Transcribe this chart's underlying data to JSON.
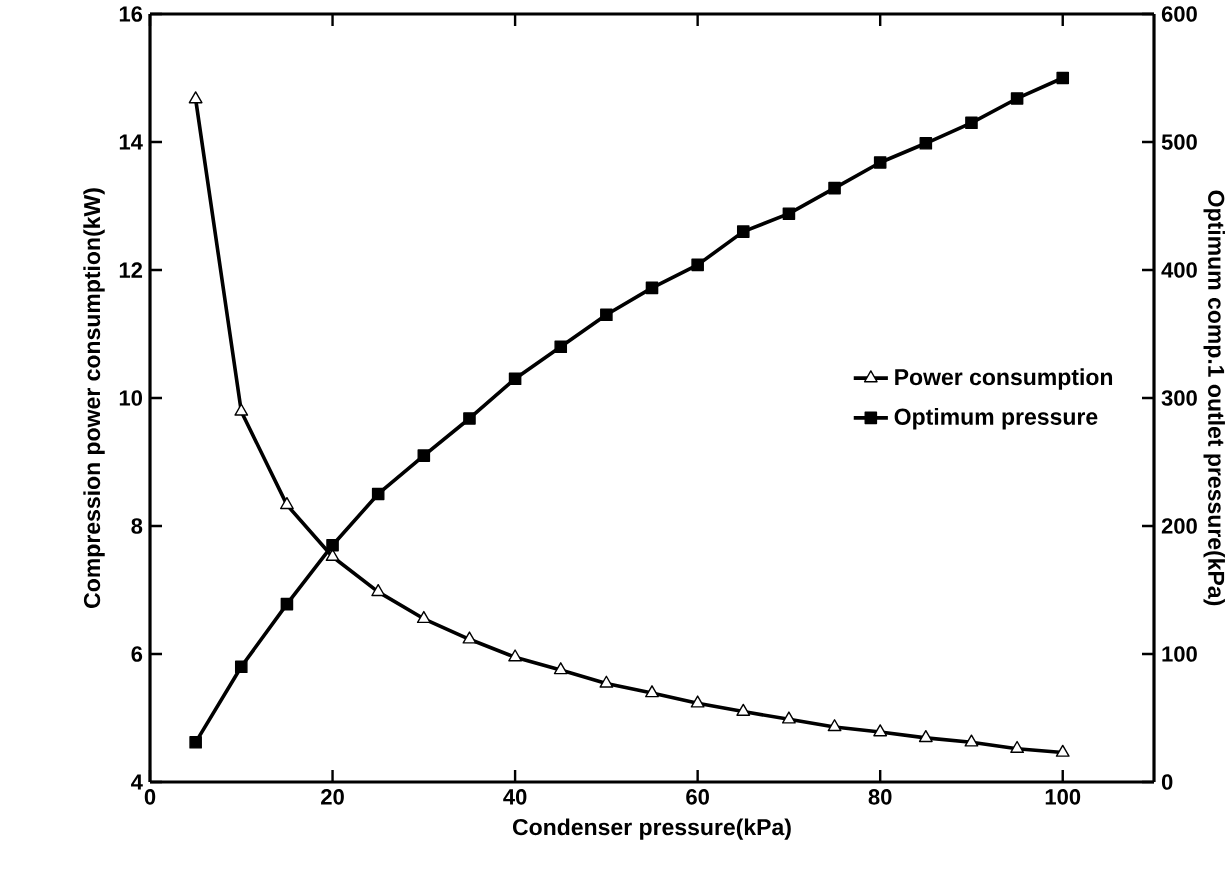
{
  "chart_data": {
    "type": "line",
    "xlabel": "Condenser pressure(kPa)",
    "ylabel": "Compression power consumption(kW)",
    "y2label": "Optimum comp.1 outlet pressure(kPa)",
    "x": [
      5,
      10,
      15,
      20,
      25,
      30,
      35,
      40,
      45,
      50,
      55,
      60,
      65,
      70,
      75,
      80,
      85,
      90,
      95,
      100
    ],
    "series": [
      {
        "name": "Power consumption",
        "color": "#000000",
        "marker": "triangle",
        "values": [
          14.67,
          9.79,
          8.33,
          7.52,
          6.97,
          6.55,
          6.23,
          5.95,
          5.75,
          5.54,
          5.39,
          5.23,
          5.1,
          4.98,
          4.86,
          4.78,
          4.69,
          4.62,
          4.52,
          4.46
        ]
      },
      {
        "name": "Optimum pressure",
        "color": "#000000",
        "marker": "square",
        "axis": "y2",
        "values": [
          31,
          90,
          139,
          185,
          225,
          255,
          284,
          315,
          340,
          365,
          386,
          404,
          430,
          444,
          464,
          484,
          499,
          515,
          534,
          550
        ]
      }
    ],
    "xlim": [
      0,
      110
    ],
    "xticks": [
      0,
      20,
      40,
      60,
      80,
      100
    ],
    "ylim": [
      4,
      16
    ],
    "yticks": [
      4,
      6,
      8,
      10,
      12,
      14,
      16
    ],
    "y2lim": [
      0,
      600
    ],
    "y2ticks": [
      0,
      100,
      200,
      300,
      400,
      500,
      600
    ],
    "legend": "right"
  }
}
